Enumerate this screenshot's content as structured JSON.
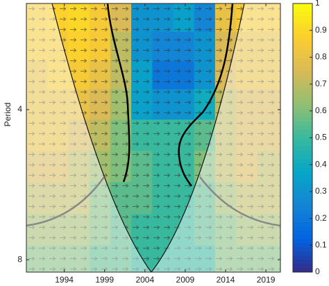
{
  "chart_data": {
    "type": "heatmap",
    "y_label": "Period",
    "x": [
      1990.6,
      1993.2,
      1995.8,
      1998.4,
      2001.0,
      2003.6,
      2006.2,
      2008.8,
      2011.4,
      2014.0,
      2016.6,
      2019.2
    ],
    "y": [
      2.6,
      3.0,
      3.4,
      3.9,
      4.5,
      5.2,
      6.0,
      7.0,
      8.0
    ],
    "z": [
      [
        0.85,
        0.88,
        0.9,
        0.85,
        0.75,
        0.3,
        0.3,
        0.35,
        0.25,
        0.8,
        0.85,
        0.85
      ],
      [
        0.85,
        0.85,
        0.88,
        0.85,
        0.7,
        0.3,
        0.25,
        0.25,
        0.3,
        0.75,
        0.8,
        0.8
      ],
      [
        0.8,
        0.85,
        0.85,
        0.8,
        0.7,
        0.35,
        0.2,
        0.2,
        0.3,
        0.75,
        0.8,
        0.8
      ],
      [
        0.8,
        0.8,
        0.8,
        0.75,
        0.65,
        0.35,
        0.3,
        0.3,
        0.4,
        0.7,
        0.75,
        0.75
      ],
      [
        0.8,
        0.8,
        0.75,
        0.7,
        0.6,
        0.5,
        0.5,
        0.5,
        0.55,
        0.7,
        0.75,
        0.75
      ],
      [
        0.75,
        0.75,
        0.7,
        0.65,
        0.6,
        0.55,
        0.5,
        0.5,
        0.6,
        0.7,
        0.75,
        0.7
      ],
      [
        0.7,
        0.7,
        0.7,
        0.6,
        0.55,
        0.55,
        0.5,
        0.5,
        0.55,
        0.65,
        0.7,
        0.7
      ],
      [
        0.65,
        0.65,
        0.65,
        0.6,
        0.55,
        0.5,
        0.5,
        0.5,
        0.55,
        0.6,
        0.65,
        0.65
      ],
      [
        0.6,
        0.6,
        0.6,
        0.55,
        0.55,
        0.5,
        0.5,
        0.5,
        0.5,
        0.6,
        0.6,
        0.6
      ]
    ],
    "xlim": [
      1989.3,
      2020.8
    ],
    "xticks": [
      1994,
      1999,
      2004,
      2009,
      2014,
      2019
    ],
    "ylim": [
      2.45,
      8.47
    ],
    "yticks": [
      4,
      8
    ],
    "y_scale": "log",
    "y_reversed": true,
    "colormap": "parula",
    "clim": [
      0,
      1
    ],
    "cticks": [
      0,
      0.1,
      0.2,
      0.3,
      0.4,
      0.5,
      0.6,
      0.7,
      0.8,
      0.9,
      1
    ]
  }
}
